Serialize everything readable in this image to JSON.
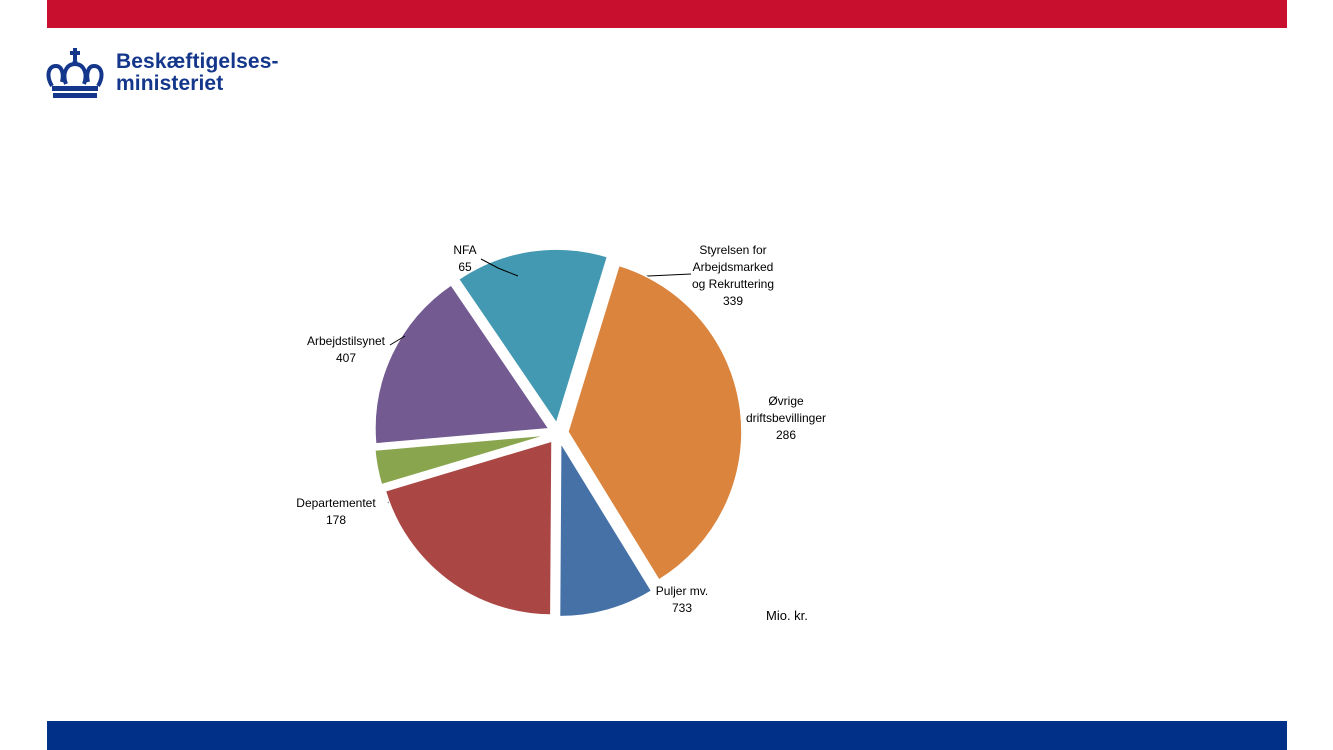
{
  "colors": {
    "top_bar": "#c8102e",
    "bottom_bar": "#003087",
    "logo": "#14378c"
  },
  "logo": {
    "icon": "crown-icon",
    "line1": "Beskæftigelses-",
    "line2": "ministeriet"
  },
  "chart_data": {
    "type": "pie",
    "unit_label": "Mio. kr.",
    "slices": [
      {
        "label": [
          "Styrelsen for",
          "Arbejdsmarked",
          "og Rekruttering"
        ],
        "value": 339,
        "color": "#735a91"
      },
      {
        "label": [
          "Øvrige",
          "driftsbevillinger"
        ],
        "value": 286,
        "color": "#4399b1"
      },
      {
        "label": [
          "Puljer mv."
        ],
        "value": 733,
        "color": "#db843d"
      },
      {
        "label": [
          "Departementet"
        ],
        "value": 178,
        "color": "#4571a7"
      },
      {
        "label": [
          "Arbejdstilsynet"
        ],
        "value": 407,
        "color": "#aa4643"
      },
      {
        "label": [
          "NFA"
        ],
        "value": 65,
        "color": "#89a54e"
      }
    ]
  }
}
